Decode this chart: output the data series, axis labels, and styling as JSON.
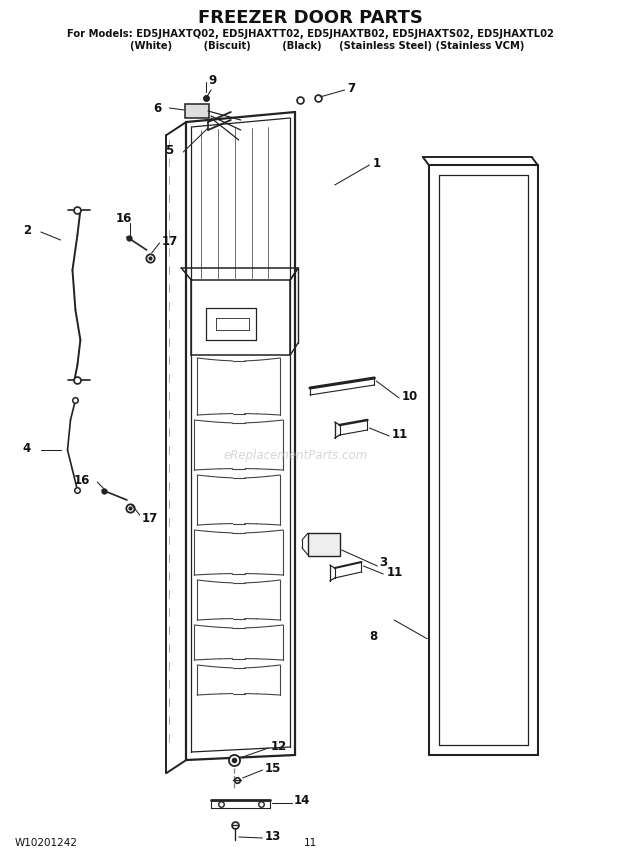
{
  "title": "FREEZER DOOR PARTS",
  "subtitle_line1": "For Models: ED5JHAXTQ02, ED5JHAXTT02, ED5JHAXTB02, ED5JHAXTS02, ED5JHAXTL02",
  "subtitle_line2": "          (White)         (Biscuit)         (Black)     (Stainless Steel) (Stainless VCM)",
  "footer_left": "W10201242",
  "footer_center": "11",
  "watermark": "eReplacementParts.com",
  "bg_color": "#ffffff",
  "text_color": "#111111",
  "diagram_color": "#222222"
}
